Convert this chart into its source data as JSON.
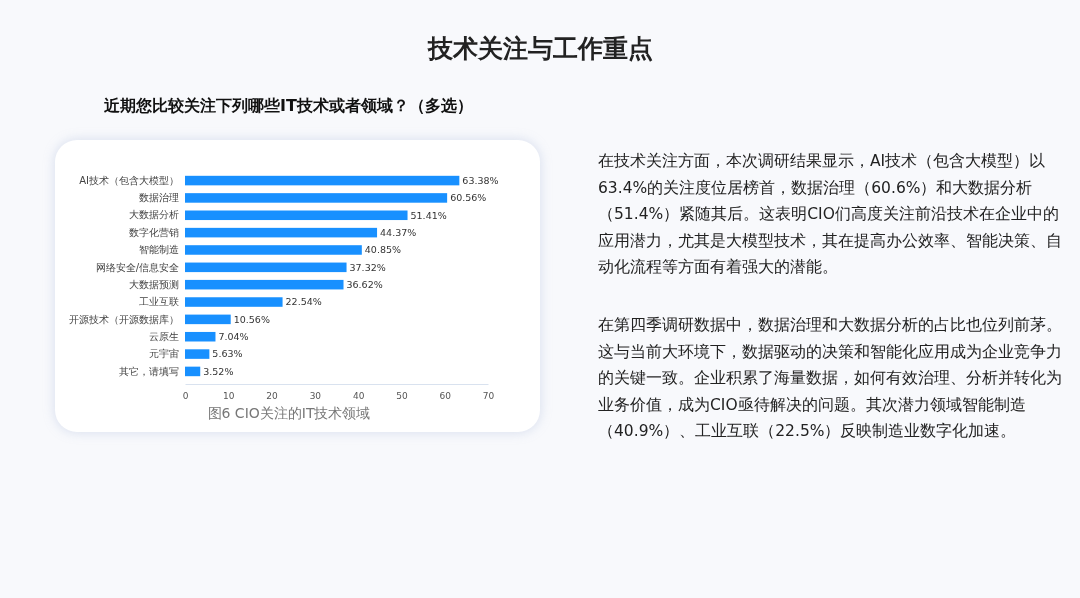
{
  "chart_data": {
    "type": "bar",
    "orientation": "horizontal",
    "title": "技术关注与工作重点",
    "subtitle": "近期您比较关注下列哪些IT技术或者领域？（多选）",
    "categories": [
      "AI技术（包含大模型）",
      "数据治理",
      "大数据分析",
      "数字化营销",
      "智能制造",
      "网络安全/信息安全",
      "大数据预测",
      "工业互联",
      "开源技术（开源数据库）",
      "云原生",
      "元宇宙",
      "其它，请填写"
    ],
    "values": [
      63.38,
      60.56,
      51.41,
      44.37,
      40.85,
      37.32,
      36.62,
      22.54,
      10.56,
      7.04,
      5.63,
      3.52
    ],
    "value_labels": [
      "63.38%",
      "60.56%",
      "51.41%",
      "44.37%",
      "40.85%",
      "37.32%",
      "36.62%",
      "22.54%",
      "10.56%",
      "7.04%",
      "5.63%",
      "3.52%"
    ],
    "color": "#1890ff",
    "xlim": [
      0,
      70
    ],
    "xticks": [
      0,
      10,
      20,
      30,
      40,
      50,
      60,
      70
    ],
    "grid": false,
    "annotations": [
      "图6 CIO关注的IT技术领域",
      "在技术关注方面，本次调研结果显示，AI技术（包含大模型）以63.4%的关注度位居榜首，数据治理（60.6%）和大数据分析（51.4%）紧随其后。这表明CIO们高度关注前沿技术在企业中的应用潜力，尤其是大模型技术，其在提高办公效率、智能决策、自动化流程等方面有着强大的潜能。",
      "在第四季调研数据中，数据治理和大数据分析的占比也位列前茅。这与当前大环境下，数据驱动的决策和智能化应用成为企业竞争力的关键一致。企业积累了海量数据，如何有效治理、分析并转化为业务价值，成为CIO亟待解决的问题。其次潜力领域智能制造（40.9%）、工业互联（22.5%）反映制造业数字化加速。"
    ]
  }
}
